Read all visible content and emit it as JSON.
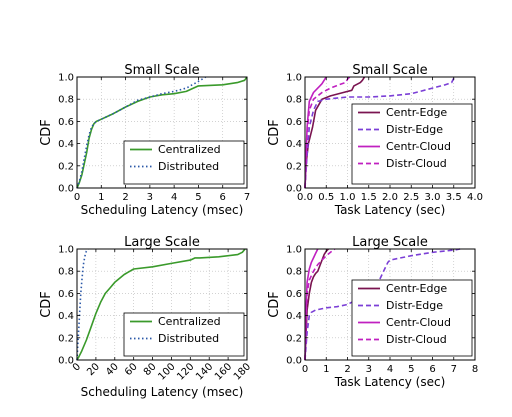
{
  "chart_data": [
    {
      "type": "line",
      "title": "Small Scale",
      "xlabel": "Scheduling Latency (msec)",
      "ylabel": "CDF",
      "xlim": [
        0,
        7
      ],
      "ylim": [
        0,
        1.0
      ],
      "xticks": [
        "0",
        "1",
        "2",
        "3",
        "4",
        "5",
        "6",
        "7"
      ],
      "yticks": [
        "0.0",
        "0.2",
        "0.4",
        "0.6",
        "0.8",
        "1.0"
      ],
      "xtick_rotation": 0,
      "grid": true,
      "legend_position": "bottom-right",
      "series": [
        {
          "name": "Centralized",
          "color": "#3a9a2b",
          "dash": "solid",
          "x": [
            0,
            0.1,
            0.2,
            0.3,
            0.4,
            0.5,
            0.6,
            0.7,
            0.8,
            0.9,
            1.0,
            1.2,
            1.5,
            2.0,
            2.5,
            3.0,
            3.5,
            4.0,
            4.5,
            5.0,
            6.0,
            6.6,
            6.9,
            7.0
          ],
          "y": [
            0,
            0.05,
            0.12,
            0.22,
            0.32,
            0.45,
            0.53,
            0.58,
            0.6,
            0.61,
            0.62,
            0.64,
            0.67,
            0.73,
            0.78,
            0.82,
            0.84,
            0.85,
            0.87,
            0.92,
            0.93,
            0.95,
            0.97,
            1.0
          ]
        },
        {
          "name": "Distributed",
          "color": "#2b58a8",
          "dash": "dotted",
          "x": [
            0,
            0.1,
            0.2,
            0.3,
            0.4,
            0.5,
            0.6,
            0.7,
            0.8,
            0.9,
            1.0,
            1.5,
            2.0,
            2.5,
            3.0,
            3.5,
            4.0,
            4.5,
            5.0,
            5.3
          ],
          "y": [
            0,
            0.06,
            0.15,
            0.27,
            0.38,
            0.48,
            0.55,
            0.58,
            0.6,
            0.61,
            0.62,
            0.67,
            0.73,
            0.79,
            0.82,
            0.85,
            0.87,
            0.9,
            0.96,
            1.0
          ]
        }
      ]
    },
    {
      "type": "line",
      "title": "Small Scale",
      "xlabel": "Task Latency (sec)",
      "ylabel": "CDF",
      "xlim": [
        0,
        4.0
      ],
      "ylim": [
        0,
        1.0
      ],
      "xticks": [
        "0.0",
        "0.5",
        "1.0",
        "1.5",
        "2.0",
        "2.5",
        "3.0",
        "3.5",
        "4.0"
      ],
      "yticks": [
        "0.0",
        "0.2",
        "0.4",
        "0.6",
        "0.8",
        "1.0"
      ],
      "xtick_rotation": 0,
      "grid": true,
      "legend_position": "bottom-right",
      "series": [
        {
          "name": "Centr-Edge",
          "color": "#7a1450",
          "dash": "solid",
          "x": [
            0.0,
            0.02,
            0.05,
            0.08,
            0.12,
            0.18,
            0.25,
            0.4,
            0.6,
            0.9,
            1.1,
            1.15,
            1.2,
            1.3,
            1.35,
            1.4
          ],
          "y": [
            0.0,
            0.2,
            0.3,
            0.4,
            0.46,
            0.55,
            0.7,
            0.8,
            0.83,
            0.86,
            0.88,
            0.92,
            0.93,
            0.95,
            0.97,
            1.0
          ]
        },
        {
          "name": "Distr-Edge",
          "color": "#7b3fd6",
          "dash": "dashed",
          "x": [
            0.0,
            0.05,
            0.1,
            0.2,
            0.3,
            0.5,
            1.0,
            1.5,
            2.0,
            2.5,
            3.0,
            3.3,
            3.45,
            3.5,
            3.55
          ],
          "y": [
            0.0,
            0.3,
            0.55,
            0.7,
            0.78,
            0.8,
            0.82,
            0.82,
            0.83,
            0.85,
            0.9,
            0.93,
            0.95,
            0.99,
            1.0
          ]
        },
        {
          "name": "Centr-Cloud",
          "color": "#c020c0",
          "dash": "solid",
          "x": [
            0.0,
            0.05,
            0.1,
            0.2,
            0.3,
            0.35,
            0.4,
            0.45,
            0.5
          ],
          "y": [
            0.0,
            0.55,
            0.78,
            0.86,
            0.9,
            0.92,
            0.94,
            0.97,
            1.0
          ]
        },
        {
          "name": "Distr-Cloud",
          "color": "#c020c0",
          "dash": "dashed",
          "x": [
            0.0,
            0.05,
            0.1,
            0.2,
            0.4,
            0.6,
            0.8,
            0.95,
            1.0,
            1.05
          ],
          "y": [
            0.0,
            0.5,
            0.7,
            0.8,
            0.86,
            0.9,
            0.93,
            0.95,
            0.98,
            1.0
          ]
        }
      ]
    },
    {
      "type": "line",
      "title": "Large Scale",
      "xlabel": "Scheduling Latency (msec)",
      "ylabel": "CDF",
      "xlim": [
        0,
        180
      ],
      "ylim": [
        0,
        1.0
      ],
      "xticks": [
        "0",
        "20",
        "40",
        "60",
        "80",
        "100",
        "120",
        "140",
        "160",
        "180"
      ],
      "yticks": [
        "0.0",
        "0.2",
        "0.4",
        "0.6",
        "0.8",
        "1.0"
      ],
      "xtick_rotation": -45,
      "grid": true,
      "legend_position": "bottom-right",
      "series": [
        {
          "name": "Centralized",
          "color": "#3a9a2b",
          "dash": "solid",
          "x": [
            0,
            2,
            5,
            10,
            15,
            20,
            25,
            30,
            35,
            40,
            50,
            60,
            80,
            100,
            120,
            125,
            130,
            150,
            170,
            175,
            178
          ],
          "y": [
            0,
            0.03,
            0.08,
            0.18,
            0.3,
            0.42,
            0.52,
            0.6,
            0.65,
            0.7,
            0.77,
            0.82,
            0.84,
            0.87,
            0.9,
            0.92,
            0.92,
            0.93,
            0.95,
            0.97,
            1.0
          ]
        },
        {
          "name": "Distributed",
          "color": "#2b58a8",
          "dash": "dotted",
          "x": [
            0,
            1,
            2,
            3,
            4,
            5,
            6,
            7,
            8,
            9,
            10,
            12
          ],
          "y": [
            0,
            0.15,
            0.3,
            0.45,
            0.6,
            0.7,
            0.8,
            0.87,
            0.92,
            0.96,
            0.98,
            1.0
          ]
        }
      ]
    },
    {
      "type": "line",
      "title": "Large Scale",
      "xlabel": "Task Latency (sec)",
      "ylabel": "CDF",
      "xlim": [
        0,
        8
      ],
      "ylim": [
        0,
        1.0
      ],
      "xticks": [
        "0",
        "1",
        "2",
        "3",
        "4",
        "5",
        "6",
        "7",
        "8"
      ],
      "yticks": [
        "0.0",
        "0.2",
        "0.4",
        "0.6",
        "0.8",
        "1.0"
      ],
      "xtick_rotation": 0,
      "grid": true,
      "legend_position": "bottom-right",
      "series": [
        {
          "name": "Centr-Edge",
          "color": "#7a1450",
          "dash": "solid",
          "x": [
            0.0,
            0.05,
            0.1,
            0.2,
            0.3,
            0.4,
            0.5,
            0.6,
            0.7,
            0.8,
            0.9,
            1.0,
            1.1
          ],
          "y": [
            0.0,
            0.25,
            0.45,
            0.6,
            0.7,
            0.75,
            0.78,
            0.8,
            0.85,
            0.9,
            0.95,
            0.98,
            1.0
          ]
        },
        {
          "name": "Distr-Edge",
          "color": "#7b3fd6",
          "dash": "dashed",
          "x": [
            0.0,
            0.1,
            0.2,
            0.3,
            0.5,
            1.0,
            1.5,
            2.0,
            2.5,
            3.0,
            3.3,
            3.5,
            3.7,
            3.9,
            4.0,
            4.5,
            5.0,
            6.0,
            7.0,
            7.3
          ],
          "y": [
            0.0,
            0.25,
            0.4,
            0.43,
            0.45,
            0.47,
            0.48,
            0.5,
            0.55,
            0.6,
            0.66,
            0.72,
            0.8,
            0.88,
            0.9,
            0.92,
            0.94,
            0.97,
            0.99,
            1.0
          ]
        },
        {
          "name": "Centr-Cloud",
          "color": "#c020c0",
          "dash": "solid",
          "x": [
            0.0,
            0.05,
            0.1,
            0.2,
            0.3,
            0.4,
            0.5,
            0.6
          ],
          "y": [
            0.0,
            0.45,
            0.7,
            0.82,
            0.88,
            0.92,
            0.96,
            1.0
          ]
        },
        {
          "name": "Distr-Cloud",
          "color": "#c020c0",
          "dash": "dashed",
          "x": [
            0.0,
            0.05,
            0.1,
            0.2,
            0.4,
            0.6,
            0.8,
            1.0,
            1.2,
            1.4
          ],
          "y": [
            0.0,
            0.4,
            0.6,
            0.72,
            0.8,
            0.86,
            0.9,
            0.94,
            0.97,
            1.0
          ]
        }
      ]
    }
  ]
}
